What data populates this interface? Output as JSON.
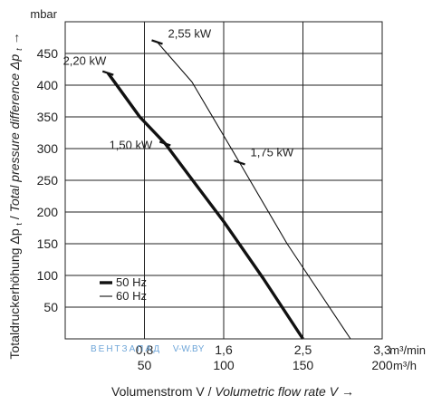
{
  "chart_data": {
    "type": "line",
    "xlabel_primary": "Volumenstrom V",
    "xlabel_secondary": "Volumetric flow rate V →",
    "ylabel_primary": "Totaldruckerhöhung Δp",
    "ylabel_primary_sub": "t",
    "ylabel_secondary": "Total pressure difference Δp",
    "ylabel_secondary_sub": "t",
    "ylabel_arrow": "→",
    "y_unit": "mbar",
    "x_unit_primary": "m³/min",
    "x_unit_secondary": "m³/h",
    "ylim": [
      0,
      500
    ],
    "xlim": [
      0,
      200
    ],
    "yticks": [
      50,
      100,
      150,
      200,
      250,
      300,
      350,
      400,
      450
    ],
    "xticks_secondary": [
      50,
      100,
      150,
      200
    ],
    "xticks_primary": [
      "0,8",
      "1,6",
      "2,5",
      "3,3"
    ],
    "xticks_primary_pos": [
      50,
      100,
      150,
      200
    ],
    "grid": true,
    "series": [
      {
        "name": "50 Hz",
        "style": "bold",
        "points": [
          [
            27,
            419
          ],
          [
            47,
            350
          ],
          [
            63,
            308
          ],
          [
            78,
            258
          ],
          [
            100,
            185
          ],
          [
            125,
            95
          ],
          [
            150,
            0
          ]
        ],
        "markers": [
          [
            27,
            419
          ],
          [
            63,
            308
          ]
        ]
      },
      {
        "name": "60 Hz",
        "style": "thin",
        "points": [
          [
            58,
            468
          ],
          [
            80,
            405
          ],
          [
            110,
            278
          ],
          [
            140,
            150
          ],
          [
            180,
            0
          ]
        ],
        "markers": [
          [
            58,
            468
          ],
          [
            110,
            278
          ]
        ]
      }
    ],
    "annotations": [
      {
        "text": "2,20 kW",
        "x": 27,
        "y": 419
      },
      {
        "text": "1,50 kW",
        "x": 63,
        "y": 308
      },
      {
        "text": "2,55 kW",
        "x": 58,
        "y": 468
      },
      {
        "text": "1,75 kW",
        "x": 110,
        "y": 278
      }
    ],
    "legend_position": "bottom-left",
    "watermark": "ВЕНТЗАПАД",
    "watermark_suffix": "V-W.BY"
  }
}
